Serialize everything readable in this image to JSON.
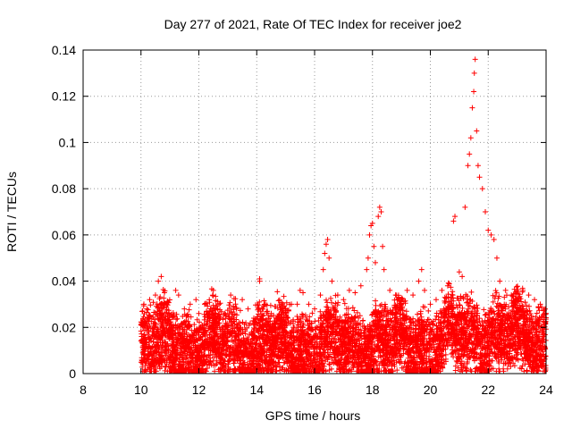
{
  "chart_data": {
    "type": "scatter",
    "title": "Day 277 of 2021, Rate Of TEC Index for receiver joe2",
    "xlabel": "GPS time / hours",
    "ylabel": "ROTI / TECUs",
    "xlim": [
      8,
      24
    ],
    "ylim": [
      0,
      0.14
    ],
    "x_ticks": [
      8,
      10,
      12,
      14,
      16,
      18,
      20,
      22,
      24
    ],
    "y_ticks": [
      0,
      0.02,
      0.04,
      0.06,
      0.08,
      0.1,
      0.12,
      0.14
    ],
    "y_tick_labels": [
      "0",
      "0.02",
      "0.04",
      "0.06",
      "0.08",
      "0.1",
      "0.12",
      "0.14"
    ],
    "grid": true,
    "marker": "+",
    "series_color": "#ff0000",
    "series": [
      {
        "name": "ROTI",
        "points": [
          [
            10.0,
            0.021
          ],
          [
            10.1,
            0.03
          ],
          [
            10.2,
            0.028
          ],
          [
            10.3,
            0.032
          ],
          [
            10.5,
            0.034
          ],
          [
            10.6,
            0.04
          ],
          [
            10.7,
            0.042
          ],
          [
            10.8,
            0.03
          ],
          [
            11.0,
            0.025
          ],
          [
            11.2,
            0.036
          ],
          [
            11.3,
            0.034
          ],
          [
            11.5,
            0.028
          ],
          [
            11.7,
            0.03
          ],
          [
            11.9,
            0.032
          ],
          [
            12.0,
            0.026
          ],
          [
            12.2,
            0.03
          ],
          [
            12.4,
            0.028
          ],
          [
            12.5,
            0.036
          ],
          [
            12.7,
            0.03
          ],
          [
            12.9,
            0.026
          ],
          [
            13.1,
            0.034
          ],
          [
            13.3,
            0.028
          ],
          [
            13.5,
            0.032
          ],
          [
            13.7,
            0.028
          ],
          [
            13.9,
            0.024
          ],
          [
            14.1,
            0.041
          ],
          [
            14.1,
            0.04
          ],
          [
            14.3,
            0.03
          ],
          [
            14.5,
            0.026
          ],
          [
            14.7,
            0.024
          ],
          [
            14.9,
            0.028
          ],
          [
            15.0,
            0.026
          ],
          [
            15.2,
            0.03
          ],
          [
            15.4,
            0.03
          ],
          [
            15.5,
            0.036
          ],
          [
            15.6,
            0.035
          ],
          [
            15.8,
            0.03
          ],
          [
            16.0,
            0.028
          ],
          [
            16.2,
            0.034
          ],
          [
            16.3,
            0.045
          ],
          [
            16.35,
            0.052
          ],
          [
            16.4,
            0.056
          ],
          [
            16.45,
            0.058
          ],
          [
            16.5,
            0.05
          ],
          [
            16.6,
            0.04
          ],
          [
            16.8,
            0.034
          ],
          [
            17.0,
            0.032
          ],
          [
            17.2,
            0.036
          ],
          [
            17.4,
            0.035
          ],
          [
            17.6,
            0.038
          ],
          [
            17.8,
            0.045
          ],
          [
            17.85,
            0.05
          ],
          [
            17.9,
            0.06
          ],
          [
            17.95,
            0.064
          ],
          [
            18.0,
            0.065
          ],
          [
            18.05,
            0.055
          ],
          [
            18.1,
            0.048
          ],
          [
            18.2,
            0.068
          ],
          [
            18.25,
            0.072
          ],
          [
            18.3,
            0.07
          ],
          [
            18.35,
            0.055
          ],
          [
            18.4,
            0.045
          ],
          [
            18.6,
            0.036
          ],
          [
            18.8,
            0.034
          ],
          [
            19.0,
            0.032
          ],
          [
            19.2,
            0.036
          ],
          [
            19.4,
            0.034
          ],
          [
            19.6,
            0.04
          ],
          [
            19.7,
            0.045
          ],
          [
            19.8,
            0.036
          ],
          [
            20.0,
            0.03
          ],
          [
            20.2,
            0.032
          ],
          [
            20.4,
            0.036
          ],
          [
            20.6,
            0.038
          ],
          [
            20.8,
            0.066
          ],
          [
            20.85,
            0.068
          ],
          [
            21.0,
            0.044
          ],
          [
            21.1,
            0.042
          ],
          [
            21.2,
            0.072
          ],
          [
            21.3,
            0.09
          ],
          [
            21.35,
            0.095
          ],
          [
            21.4,
            0.102
          ],
          [
            21.45,
            0.115
          ],
          [
            21.5,
            0.122
          ],
          [
            21.52,
            0.13
          ],
          [
            21.55,
            0.136
          ],
          [
            21.6,
            0.105
          ],
          [
            21.65,
            0.09
          ],
          [
            21.7,
            0.085
          ],
          [
            21.8,
            0.08
          ],
          [
            21.9,
            0.07
          ],
          [
            22.0,
            0.062
          ],
          [
            22.1,
            0.06
          ],
          [
            22.2,
            0.058
          ],
          [
            22.3,
            0.05
          ],
          [
            22.4,
            0.04
          ],
          [
            22.6,
            0.036
          ],
          [
            22.8,
            0.034
          ],
          [
            23.0,
            0.032
          ],
          [
            23.2,
            0.036
          ],
          [
            23.4,
            0.034
          ],
          [
            23.6,
            0.032
          ],
          [
            23.8,
            0.03
          ],
          [
            24.0,
            0.026
          ]
        ]
      }
    ]
  }
}
